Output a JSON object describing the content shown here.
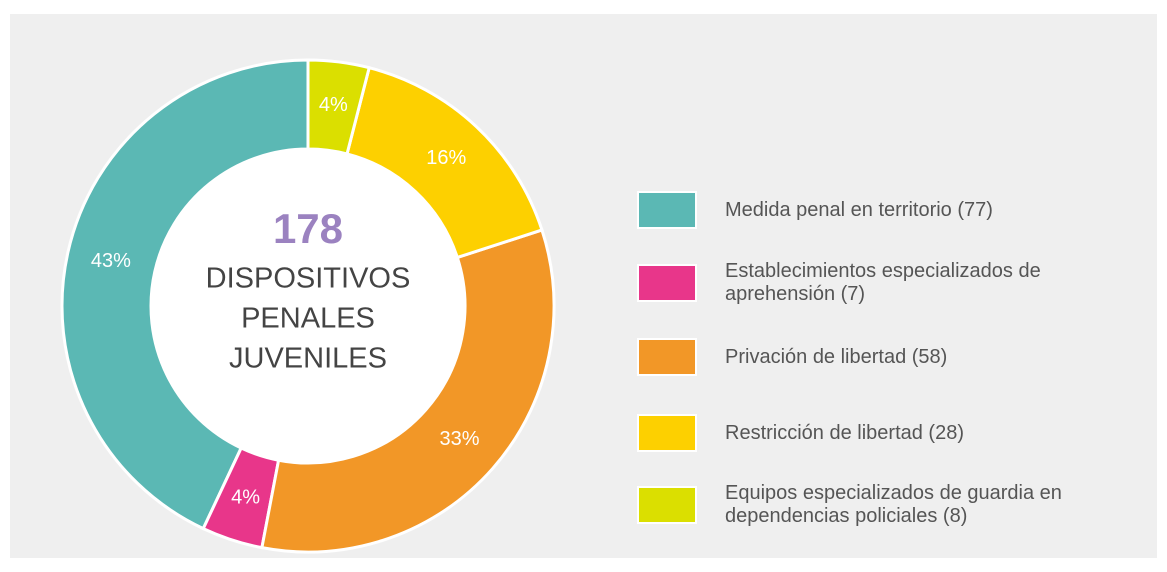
{
  "chart_data": {
    "type": "pie",
    "center_value": "178",
    "center_label": [
      "DISPOSITIVOS",
      "PENALES",
      "JUVENILES"
    ],
    "categories": [
      "Medida penal en territorio (77)",
      "Establecimientos especializados de aprehensión (7)",
      "Privación de libertad (58)",
      "Restricción de libertad (28)",
      "Equipos especializados de guardia en dependencias policiales (8)"
    ],
    "values": [
      43,
      4,
      33,
      16,
      4
    ],
    "value_labels": [
      "43%",
      "4%",
      "33%",
      "16%",
      "4%"
    ],
    "colors": [
      "#5bb8b4",
      "#e8368a",
      "#f29727",
      "#fdd000",
      "#dbdf00"
    ],
    "legend": "right"
  }
}
